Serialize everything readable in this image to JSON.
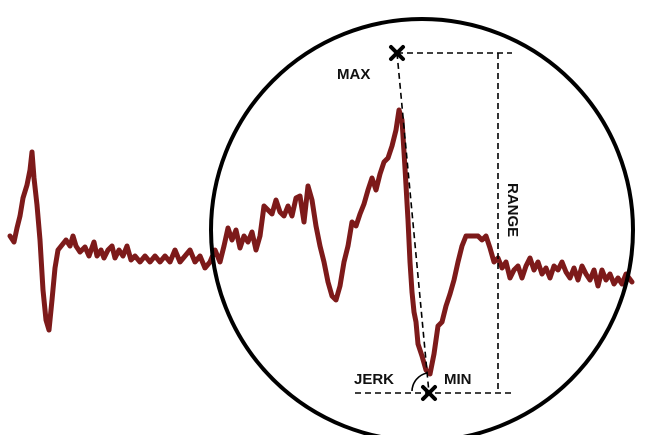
{
  "labels": {
    "max": "MAX",
    "min": "MIN",
    "range": "RANGE",
    "jerk": "JERK"
  },
  "colors": {
    "signal": "#7d1a1a",
    "circle": "#000000",
    "annotation": "#000000",
    "background": "#ffffff"
  },
  "markers": {
    "max_icon": "x-mark-icon",
    "min_icon": "x-mark-icon"
  }
}
